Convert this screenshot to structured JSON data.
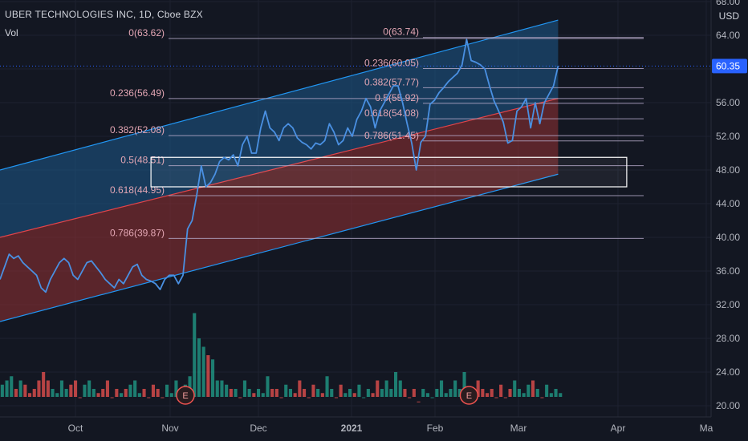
{
  "header": {
    "title": "UBER TECHNOLOGIES INC, 1D, Cboe BZX",
    "volume_label": "Vol"
  },
  "price_axis": {
    "currency": "USD",
    "last_price": "60.35"
  },
  "chart_data": {
    "type": "line",
    "title": "UBER TECHNOLOGIES INC, 1D, Cboe BZX",
    "ylim": [
      18,
      68
    ],
    "y_ticks": [
      "68.00",
      "64.00",
      "60.00",
      "56.00",
      "52.00",
      "48.00",
      "44.00",
      "40.00",
      "36.00",
      "32.00",
      "28.00",
      "24.00",
      "20.00"
    ],
    "x_ticks": [
      "Oct",
      "Nov",
      "Dec",
      "2021",
      "Feb",
      "Mar",
      "Apr",
      "Ma"
    ],
    "colors": {
      "background": "#131722",
      "price_line": "#4a90e2",
      "channel_line": "#2196f3",
      "channel_upper_fill": "#1e5a8c",
      "channel_lower_fill": "#8b2e32",
      "midline": "#e2444a",
      "fib_line": "#b2a6c4",
      "fib_label": "#e3a6b4",
      "vol_up": "#22a18c",
      "vol_down": "#ef5350",
      "last_price_badge": "#2962ff"
    },
    "close_series": [
      35,
      36.5,
      38,
      37.5,
      37.8,
      37,
      36.5,
      36,
      35.5,
      34,
      33.5,
      35,
      36,
      37,
      37.5,
      37,
      35.5,
      35,
      36,
      37,
      37.2,
      36.5,
      35.8,
      35,
      34.5,
      34,
      35,
      34.5,
      35.5,
      36.5,
      36.8,
      35.5,
      35,
      34.8,
      34.5,
      33.8,
      35,
      35.5,
      35.5,
      34.5,
      35.5,
      41,
      42,
      45,
      48.5,
      46,
      46.5,
      47.5,
      49,
      49.5,
      49.2,
      49.8,
      48.5,
      51,
      52,
      50,
      50,
      53,
      55,
      53,
      52.5,
      51.5,
      53,
      53.5,
      53,
      51.8,
      51.3,
      51,
      50.5,
      51.2,
      51,
      51.5,
      53.5,
      52.5,
      51,
      51.5,
      53,
      52,
      54,
      55,
      56.5,
      55.5,
      53,
      55,
      56,
      57,
      58,
      58,
      56,
      53.5,
      51.2,
      48,
      51.3,
      52,
      55.8,
      56.3,
      57.2,
      57.8,
      58.5,
      59,
      59.5,
      60.5,
      63.5,
      61,
      60.8,
      60.5,
      60,
      58,
      56.2,
      55,
      53.7,
      51.2,
      51.5,
      55,
      55.5,
      56.5,
      53,
      56,
      53.5,
      56,
      57,
      58,
      60.35
    ],
    "volume_series": [
      22.5,
      23,
      23.5,
      22,
      23,
      22.5,
      21.5,
      22,
      23,
      24,
      23,
      22,
      21.5,
      23,
      22,
      22.5,
      23,
      21,
      22.5,
      23,
      22,
      21.5,
      22,
      23,
      21,
      22,
      21.5,
      22,
      22.5,
      23,
      21.5,
      22,
      21,
      22.5,
      22,
      21,
      22.5,
      21.5,
      23,
      21,
      22.5,
      23.5,
      31,
      28,
      27,
      26,
      25.5,
      23,
      23,
      22.5,
      22,
      22,
      21,
      23,
      22,
      21.5,
      22,
      21.5,
      23.5,
      22,
      22,
      21,
      22.5,
      22,
      21.5,
      23,
      22,
      21,
      22.5,
      22,
      21.5,
      23.5,
      22,
      21,
      22.5,
      21.5,
      22,
      21.5,
      22.5,
      21,
      22,
      21.5,
      23,
      22,
      23,
      22,
      24,
      23,
      22,
      21,
      22,
      20.5,
      22,
      21.5,
      21,
      22,
      23,
      21.5,
      22,
      23,
      22,
      24,
      22,
      21,
      23,
      22,
      21.5,
      22,
      21,
      22.5,
      21,
      22,
      23,
      22,
      21.5,
      22.5,
      23,
      22,
      21,
      22.5,
      21.5,
      22,
      21.5
    ],
    "channel": {
      "upper": [
        [
          0,
          48
        ],
        [
          122,
          65.8
        ]
      ],
      "mid": [
        [
          0,
          40
        ],
        [
          122,
          56.5
        ]
      ],
      "lower": [
        [
          0,
          30
        ],
        [
          122,
          47.5
        ]
      ]
    },
    "fib_left": [
      {
        "label": "0(63.62)",
        "value": 63.62
      },
      {
        "label": "0.236(56.49)",
        "value": 56.49
      },
      {
        "label": "0.382(52.08)",
        "value": 52.08
      },
      {
        "label": "0.5(48.51)",
        "value": 48.51
      },
      {
        "label": "0.618(44.95)",
        "value": 44.95
      },
      {
        "label": "0.786(39.87)",
        "value": 39.87
      }
    ],
    "fib_right": [
      {
        "label": "0(63.74)",
        "value": 63.74
      },
      {
        "label": "0.236(60.05)",
        "value": 60.05
      },
      {
        "label": "0.382(57.77)",
        "value": 57.77
      },
      {
        "label": "0.5(55.92)",
        "value": 55.92
      },
      {
        "label": "0.618(54.08)",
        "value": 54.08
      },
      {
        "label": "0.786(51.45)",
        "value": 51.45
      }
    ],
    "zone_box": {
      "from_index": 33,
      "to_index": 137,
      "top": 49.5,
      "bottom": 46.0
    },
    "earnings_markers": [
      {
        "index": 40,
        "label": "E"
      },
      {
        "index": 102,
        "label": "E"
      }
    ]
  }
}
